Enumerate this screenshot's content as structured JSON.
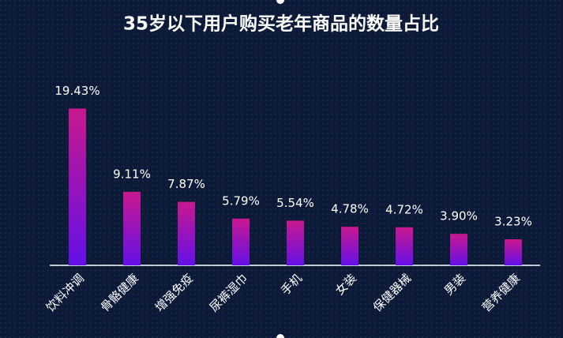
{
  "chart_data": {
    "type": "bar",
    "title": "35岁以下用户购买老年商品的数量占比",
    "categories": [
      "饮料冲调",
      "骨骼健康",
      "增强免疫",
      "尿裤湿巾",
      "手机",
      "女装",
      "保健器械",
      "男装",
      "营养健康"
    ],
    "values": [
      19.43,
      9.11,
      7.87,
      5.79,
      5.54,
      4.78,
      4.72,
      3.9,
      3.23
    ],
    "value_labels": [
      "19.43%",
      "9.11%",
      "7.87%",
      "5.79%",
      "5.54%",
      "4.78%",
      "4.72%",
      "3.90%",
      "3.23%"
    ],
    "colors": [
      "#c9188e",
      "#6410e8"
    ]
  }
}
